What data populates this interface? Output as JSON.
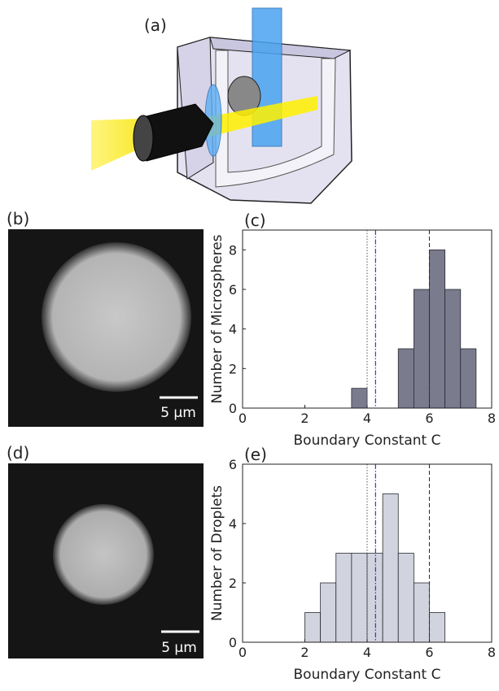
{
  "panels": {
    "a": "(a)",
    "b": "(b)",
    "d": "(d)"
  },
  "scale_bars": [
    "5 µm",
    "5 µm"
  ],
  "chart_data": [
    {
      "type": "histogram",
      "label": "(c)",
      "xlabel": "Boundary Constant C",
      "ylabel": "Number of Microspheres",
      "bins": [
        1.5,
        2,
        2.5,
        3,
        3.5,
        4,
        4.5,
        5,
        5.5,
        6,
        6.5,
        7,
        7.5
      ],
      "counts": [
        0,
        0,
        0,
        0,
        1,
        0,
        0,
        3,
        6,
        8,
        6,
        3
      ],
      "color": "#7b7b8e",
      "edgecolor": "#2a2a33",
      "xlim": [
        0,
        8
      ],
      "ylim": [
        0,
        9
      ],
      "xticks": [
        0,
        2,
        4,
        6,
        8
      ],
      "yticks": [
        0,
        2,
        4,
        6,
        8
      ],
      "vlines": [
        {
          "value": 4,
          "style": "dotted",
          "color": "#666666"
        },
        {
          "value": 4.27,
          "style": "dashdot",
          "color": "#2b2b9c"
        },
        {
          "value": 6,
          "style": "dashed",
          "color": "#333333"
        }
      ]
    },
    {
      "type": "histogram",
      "label": "(e)",
      "xlabel": "Boundary Constant C",
      "ylabel": "Number of Droplets",
      "bins": [
        2,
        2.5,
        3,
        3.5,
        4,
        4.5,
        5,
        5.5,
        6,
        6.5
      ],
      "counts": [
        1,
        2,
        3,
        3,
        3,
        5,
        3,
        2,
        1
      ],
      "color": "#d1d3de",
      "edgecolor": "#2a2a33",
      "xlim": [
        0,
        8
      ],
      "ylim": [
        0,
        6
      ],
      "xticks": [
        0,
        2,
        4,
        6,
        8
      ],
      "yticks": [
        0,
        2,
        4,
        6
      ],
      "vlines": [
        {
          "value": 4,
          "style": "dotted",
          "color": "#666666"
        },
        {
          "value": 4.27,
          "style": "dashdot",
          "color": "#2b2b9c"
        },
        {
          "value": 6,
          "style": "dashed",
          "color": "#333333"
        }
      ]
    }
  ]
}
